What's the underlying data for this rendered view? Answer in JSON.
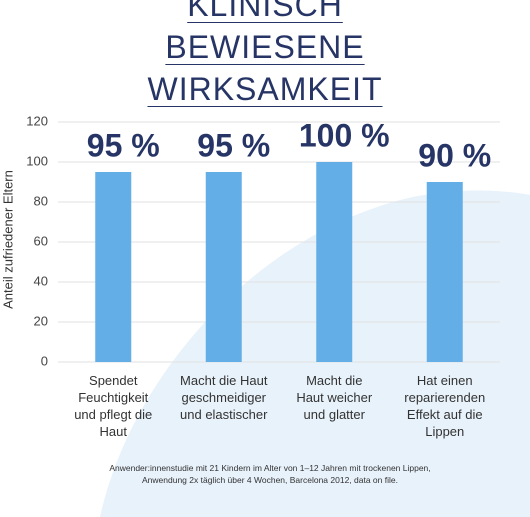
{
  "chart_data": {
    "type": "bar",
    "title": "KLINISCH BEWIESENE WIRKSAMKEIT",
    "y_label": "Anteil zufriedener Eltern",
    "categories": [
      "Spendet\nFeuchtigkeit\nund pflegt die\nHaut",
      "Macht die Haut\ngeschmeidiger\nund elastischer",
      "Macht die\nHaut weicher\nund glatter",
      "Hat einen\nreparierenden\nEffekt auf die\nLippen"
    ],
    "values": [
      95,
      95,
      100,
      90
    ],
    "value_labels": [
      "95 %",
      "95 %",
      "100 %",
      "90 %"
    ],
    "color": "#64aee8",
    "ylim": [
      0,
      120
    ],
    "yticks": [
      0,
      20,
      40,
      60,
      80,
      100,
      120
    ],
    "grid": true,
    "footnote": "Anwender:innenstudie mit 21 Kindern im Alter von 1–12 Jahren mit trockenen Lippen,\nAnwendung 2x täglich über 4 Wochen, Barcelona 2012, data on file."
  }
}
